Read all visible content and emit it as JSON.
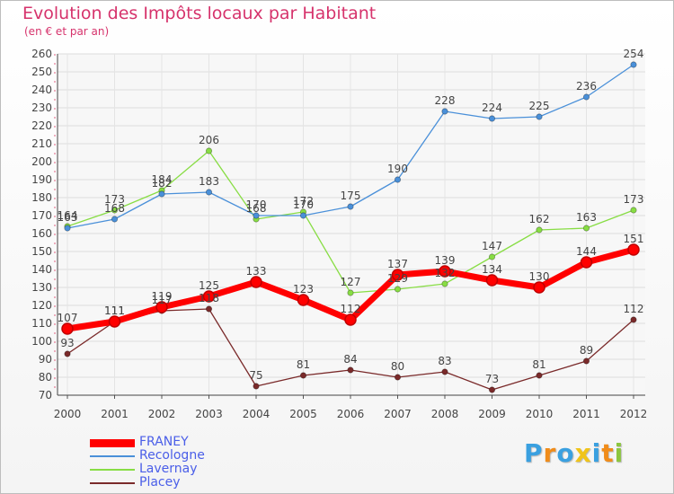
{
  "chart_data": {
    "type": "line",
    "title": "Evolution des Impôts locaux par Habitant",
    "subtitle": "(en € et par an)",
    "xlabel": "",
    "ylabel": "",
    "x": [
      "2000",
      "2001",
      "2002",
      "2003",
      "2004",
      "2005",
      "2006",
      "2007",
      "2008",
      "2009",
      "2010",
      "2011",
      "2012"
    ],
    "ylim": [
      70,
      260
    ],
    "yticks": [
      70,
      80,
      90,
      100,
      110,
      120,
      130,
      140,
      150,
      160,
      170,
      180,
      190,
      200,
      210,
      220,
      230,
      240,
      250,
      260
    ],
    "grid": true,
    "legend": "bottom-left",
    "series": [
      {
        "name": "FRANEY",
        "color": "#ff0000",
        "values": [
          107,
          111,
          119,
          125,
          133,
          123,
          112,
          137,
          139,
          134,
          130,
          144,
          151
        ]
      },
      {
        "name": "Recologne",
        "color": "#4a90d9",
        "values": [
          163,
          168,
          182,
          183,
          170,
          170,
          175,
          190,
          228,
          224,
          225,
          236,
          254
        ]
      },
      {
        "name": "Lavernay",
        "color": "#88dd44",
        "values": [
          164,
          173,
          184,
          206,
          168,
          172,
          127,
          129,
          132,
          147,
          162,
          163,
          173
        ]
      },
      {
        "name": "Placey",
        "color": "#7a2a2a",
        "values": [
          93,
          111,
          117,
          118,
          75,
          81,
          84,
          80,
          83,
          73,
          81,
          89,
          112
        ]
      }
    ]
  },
  "logo": {
    "letters": [
      "P",
      "r",
      "o",
      "x",
      "i",
      "t",
      "i"
    ],
    "colors": [
      "#3aa0e0",
      "#f08c1a",
      "#3aa0e0",
      "#f0c419",
      "#3aa0e0",
      "#f08c1a",
      "#8cc63f"
    ]
  }
}
